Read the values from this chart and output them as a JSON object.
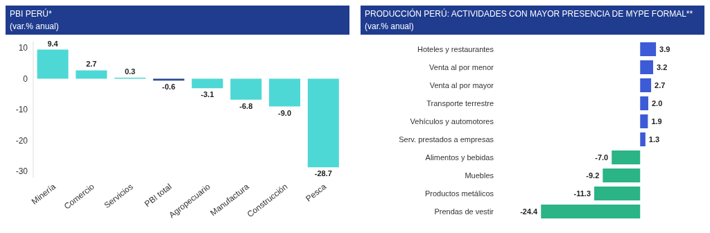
{
  "chart_data": [
    {
      "type": "bar",
      "title": "PBI PERÚ*",
      "subtitle": "(var.% anual)",
      "categories": [
        "Minería",
        "Comercio",
        "Servicios",
        "PBI total",
        "Agropecuario",
        "Manufactura",
        "Construcción",
        "Pesca"
      ],
      "values": [
        9.4,
        2.7,
        0.3,
        -0.6,
        -3.1,
        -6.8,
        -9.0,
        -28.7
      ],
      "value_labels": [
        "9.4",
        "2.7",
        "0.3",
        "-0.6",
        "-3.1",
        "-6.8",
        "-9.0",
        "-28.7"
      ],
      "colors": [
        "#4dd8d6",
        "#4dd8d6",
        "#4dd8d6",
        "#2c4a94",
        "#4dd8d6",
        "#4dd8d6",
        "#4dd8d6",
        "#4dd8d6"
      ],
      "ylim": [
        -32,
        12
      ],
      "yticks": [
        -30,
        -20,
        -10,
        0,
        10
      ]
    },
    {
      "type": "bar",
      "orientation": "horizontal",
      "title": "PRODUCCIÓN PERÚ: ACTIVIDADES CON MAYOR PRESENCIA DE MYPE FORMAL**",
      "subtitle": "(var.% anual)",
      "categories": [
        "Hoteles y restaurantes",
        "Venta al por menor",
        "Venta al por mayor",
        "Transporte terrestre",
        "Vehículos y automotores",
        "Serv. prestados a empresas",
        "Alimentos y bebidas",
        "Muebles",
        "Productos metálicos",
        "Prendas de vestir"
      ],
      "values": [
        3.9,
        3.2,
        2.7,
        2.0,
        1.9,
        1.3,
        -7.0,
        -9.2,
        -11.3,
        -24.4
      ],
      "value_labels": [
        "3.9",
        "3.2",
        "2.7",
        "2.0",
        "1.9",
        "1.3",
        "-7.0",
        "-9.2",
        "-11.3",
        "-24.4"
      ],
      "colors": [
        "#3d5bd6",
        "#3d5bd6",
        "#3d5bd6",
        "#3d5bd6",
        "#3d5bd6",
        "#3d5bd6",
        "#2bb486",
        "#2bb486",
        "#2bb486",
        "#2bb486"
      ]
    }
  ]
}
